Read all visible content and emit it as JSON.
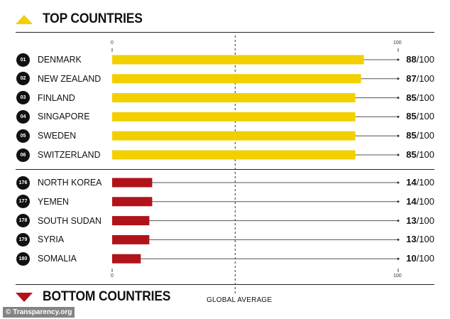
{
  "header": {
    "top_title": "TOP COUNTRIES",
    "bottom_title": "BOTTOM COUNTRIES"
  },
  "axis": {
    "min_label": "0",
    "max_label": "100",
    "reference_label": "GLOBAL AVERAGE",
    "score_suffix": "/100"
  },
  "credit": "© Transparency.org",
  "colors": {
    "top_bar": "#f2d000",
    "bottom_bar": "#b01319",
    "icon_top": "#f2d000",
    "icon_bottom": "#b01319"
  },
  "chart_data": {
    "type": "bar",
    "orientation": "horizontal",
    "xlim": [
      0,
      100
    ],
    "reference_line": {
      "label": "GLOBAL AVERAGE",
      "value": 43
    },
    "groups": [
      {
        "name": "TOP COUNTRIES",
        "rows": [
          {
            "rank": "01",
            "country": "DENMARK",
            "value": 88
          },
          {
            "rank": "02",
            "country": "NEW ZEALAND",
            "value": 87
          },
          {
            "rank": "03",
            "country": "FINLAND",
            "value": 85
          },
          {
            "rank": "04",
            "country": "SINGAPORE",
            "value": 85
          },
          {
            "rank": "05",
            "country": "SWEDEN",
            "value": 85
          },
          {
            "rank": "06",
            "country": "SWITZERLAND",
            "value": 85
          }
        ]
      },
      {
        "name": "BOTTOM COUNTRIES",
        "rows": [
          {
            "rank": "176",
            "country": "NORTH KOREA",
            "value": 14
          },
          {
            "rank": "177",
            "country": "YEMEN",
            "value": 14
          },
          {
            "rank": "178",
            "country": "SOUTH SUDAN",
            "value": 13
          },
          {
            "rank": "179",
            "country": "SYRIA",
            "value": 13
          },
          {
            "rank": "180",
            "country": "SOMALIA",
            "value": 10
          }
        ]
      }
    ]
  }
}
